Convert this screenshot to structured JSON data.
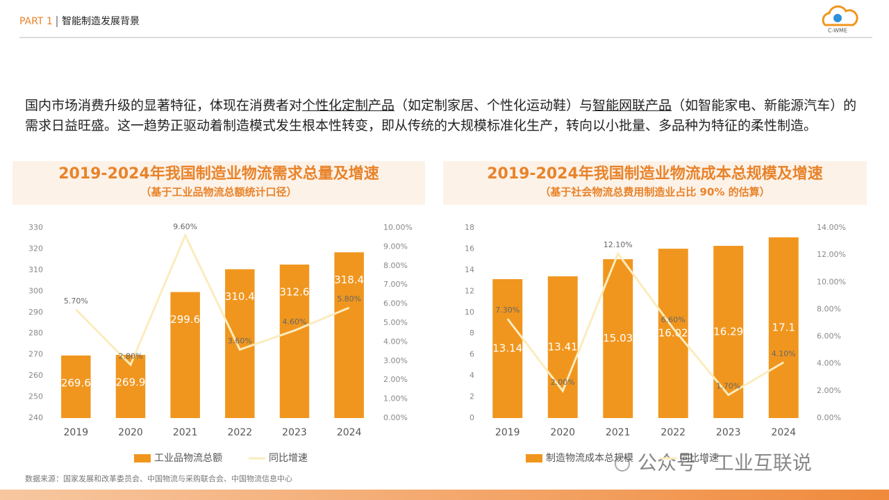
{
  "header": {
    "part": "PART 1",
    "section": "智能制造发展背景",
    "logo": "C-WME"
  },
  "intro": [
    {
      "text": "国内市场消费升级的显著特征，体现在消费者对",
      "underline": false
    },
    {
      "text": "个性化定制产品",
      "underline": true
    },
    {
      "text": "（如定制家居、个性化运动鞋）与",
      "underline": false
    },
    {
      "text": "智能网联产品",
      "underline": true
    },
    {
      "text": "（如智能家电、新能源汽车）的需求日益旺盛。这一趋势正驱动着制造模式发生根本性转变，即从传统的大规模标准化生产，转向以小批量、多品种为特征的柔性制造。",
      "underline": false
    }
  ],
  "source": "数据来源：国家发展和改革委员会、中国物流与采购联合会、中国物流信息中心",
  "watermark": "公众号 · 工业互联说",
  "chart_data": [
    {
      "type": "bar-line",
      "title": "2019-2024年我国制造业物流需求总量及增速",
      "subtitle": "（基于工业品物流总额统计口径）",
      "categories": [
        "2019",
        "2020",
        "2021",
        "2022",
        "2023",
        "2024"
      ],
      "series": [
        {
          "name": "工业品物流总额",
          "type": "bar",
          "color": "#f0961e",
          "values": [
            269.6,
            269.9,
            299.6,
            310.4,
            312.6,
            318.4
          ]
        },
        {
          "name": "同比增速",
          "type": "line",
          "axis": "y2",
          "color": "#fbecbd",
          "values": [
            5.7,
            2.8,
            9.6,
            3.6,
            4.6,
            5.8
          ],
          "value_labels": [
            "5.70%",
            "2.80%",
            "9.60%",
            "3.60%",
            "4.60%",
            "5.80%"
          ]
        }
      ],
      "ylim": [
        240,
        330
      ],
      "yticks": [
        240,
        250,
        260,
        270,
        280,
        290,
        300,
        310,
        320,
        330
      ],
      "y2lim": [
        0,
        10
      ],
      "y2ticks": [
        {
          "value": 0,
          "label": "0.00%"
        },
        {
          "value": 1,
          "label": "1.00%"
        },
        {
          "value": 2,
          "label": "2.00%"
        },
        {
          "value": 3,
          "label": "3.00%"
        },
        {
          "value": 4,
          "label": "4.00%"
        },
        {
          "value": 5,
          "label": "5.00%"
        },
        {
          "value": 6,
          "label": "6.00%"
        },
        {
          "value": 7,
          "label": "7.00%"
        },
        {
          "value": 8,
          "label": "8.00%"
        },
        {
          "value": 9,
          "label": "9.00%"
        },
        {
          "value": 10,
          "label": "10.00%"
        }
      ],
      "grid": false,
      "legend": "bottom"
    },
    {
      "type": "bar-line",
      "title": "2019-2024年我国制造业物流成本总规模及增速",
      "subtitle": "（基于社会物流总费用制造业占比 90% 的估算）",
      "categories": [
        "2019",
        "2020",
        "2021",
        "2022",
        "2023",
        "2024"
      ],
      "series": [
        {
          "name": "制造物流成本总规模",
          "type": "bar",
          "color": "#f0961e",
          "values": [
            13.14,
            13.41,
            15.03,
            16.02,
            16.29,
            17.1
          ]
        },
        {
          "name": "同比增速",
          "type": "line",
          "axis": "y2",
          "color": "#fbecbd",
          "values": [
            7.3,
            2.0,
            12.1,
            6.6,
            1.7,
            4.1
          ],
          "value_labels": [
            "7.30%",
            "2.00%",
            "12.10%",
            "6.60%",
            "1.70%",
            "4.10%"
          ]
        }
      ],
      "ylim": [
        0,
        18
      ],
      "yticks": [
        0,
        2,
        4,
        6,
        8,
        10,
        12,
        14,
        16,
        18
      ],
      "y2lim": [
        0,
        14
      ],
      "y2ticks": [
        {
          "value": 0,
          "label": "0.00%"
        },
        {
          "value": 2,
          "label": "2.00%"
        },
        {
          "value": 4,
          "label": "4.00%"
        },
        {
          "value": 6,
          "label": "6.00%"
        },
        {
          "value": 8,
          "label": "8.00%"
        },
        {
          "value": 10,
          "label": "10.00%"
        },
        {
          "value": 12,
          "label": "12.00%"
        },
        {
          "value": 14,
          "label": "14.00%"
        }
      ],
      "grid": false,
      "legend": "bottom"
    }
  ]
}
